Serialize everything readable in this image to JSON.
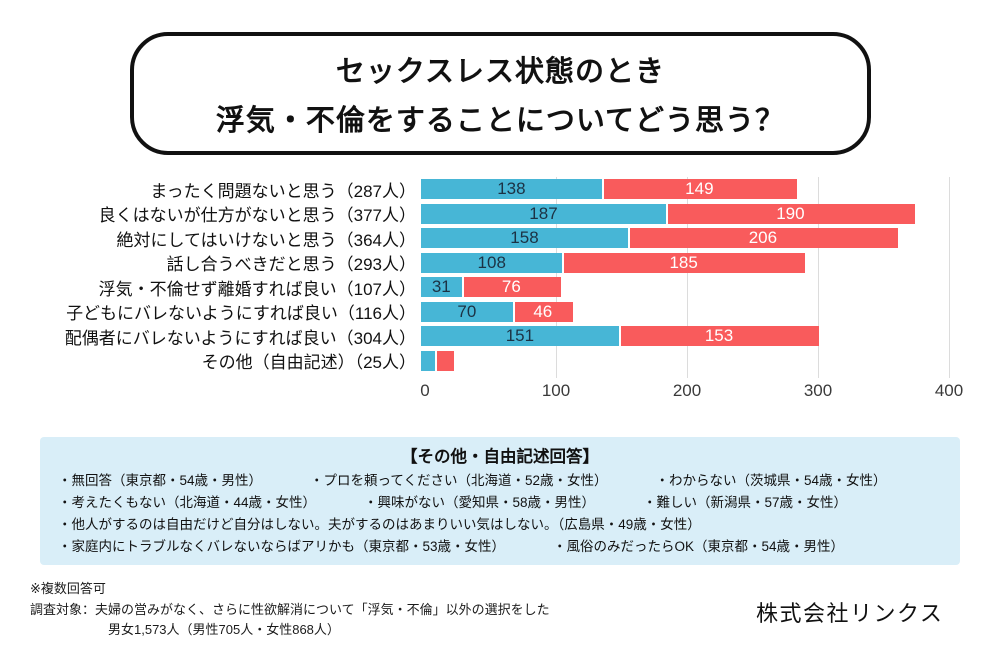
{
  "title": {
    "line1": "セックスレス状態のとき",
    "line2": "浮気・不倫をすることについてどう思う？"
  },
  "chart_data": {
    "type": "bar",
    "orientation": "horizontal",
    "stacked": true,
    "grid": true,
    "legend": "none",
    "xlim": [
      0,
      400
    ],
    "xticks": [
      0,
      100,
      200,
      300,
      400
    ],
    "min_value_for_label": 30,
    "categories": [
      "まったく問題ないと思う（287人）",
      "良くはないが仕方がないと思う（377人）",
      "絶対にしてはいけないと思う（364人）",
      "話し合うべきだと思う（293人）",
      "浮気・不倫せず離婚すれば良い（107人）",
      "子どもにバレないようにすれば良い（116人）",
      "配偶者にバレないようにすれば良い（304人）",
      "その他（自由記述）（25人）"
    ],
    "series": [
      {
        "name": "segment-blue",
        "color": "#47B6D6",
        "label_color": "#1C3244",
        "values": [
          138,
          187,
          158,
          108,
          31,
          70,
          151,
          11
        ]
      },
      {
        "name": "segment-red",
        "color": "#F95B5C",
        "label_color": "#FFFFFF",
        "values": [
          149,
          190,
          206,
          185,
          76,
          46,
          153,
          14
        ]
      }
    ],
    "totals": [
      287,
      377,
      364,
      293,
      107,
      116,
      304,
      25
    ]
  },
  "other_responses": {
    "header": "【その他・自由記述回答】",
    "lines": [
      [
        "・無回答（東京都・54歳・男性）",
        "・プロを頼ってください（北海道・52歳・女性）",
        "・わからない（茨城県・54歳・女性）"
      ],
      [
        "・考えたくもない（北海道・44歳・女性）",
        "・興味がない（愛知県・58歳・男性）",
        "・難しい（新潟県・57歳・女性）"
      ],
      [
        "・他人がするのは自由だけど自分はしない。夫がするのはあまりいい気はしない。（広島県・49歳・女性）"
      ],
      [
        "・家庭内にトラブルなくバレないならばアリかも（東京都・53歳・女性）",
        "・風俗のみだったらOK（東京都・54歳・男性）"
      ]
    ]
  },
  "footnotes": {
    "note1": "※複数回答可",
    "note2": "調査対象：夫婦の営みがなく、さらに性欲解消について「浮気・不倫」以外の選択をした",
    "note3": "男女1,573人（男性705人・女性868人）"
  },
  "company": "株式会社リンクス",
  "colors": {
    "series_blue": "#47B6D6",
    "series_red": "#F95B5C",
    "responses_box_bg": "#D9EEF8",
    "gridline": "#DCDCDC",
    "title_border": "#111111"
  }
}
